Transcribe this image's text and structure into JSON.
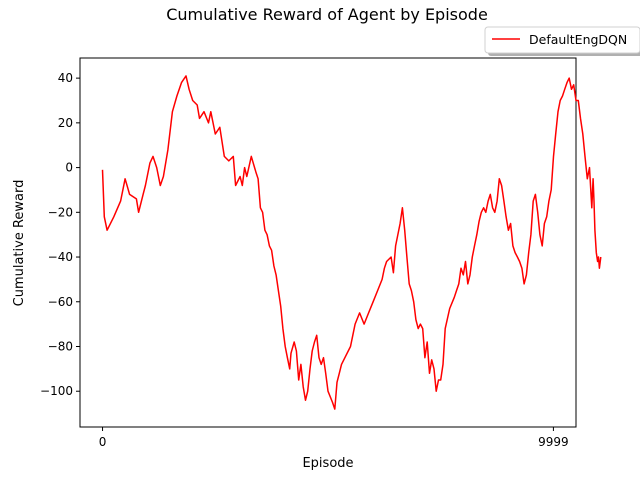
{
  "chart_data": {
    "type": "line",
    "title": "Cumulative Reward of Agent by Episode",
    "xlabel": "Episode",
    "ylabel": "Cumulative Reward",
    "x_ticks": [
      "0",
      "9999"
    ],
    "y_ticks": [
      "40",
      "20",
      "0",
      "−20",
      "−40",
      "−60",
      "−80",
      "−100"
    ],
    "xlim": [
      -500,
      10500
    ],
    "ylim": [
      -116,
      49
    ],
    "grid": false,
    "legend_position": "top-right",
    "series": [
      {
        "name": "DefaultEngDQN",
        "color": "#ff0000",
        "points": [
          [
            0,
            -1
          ],
          [
            40,
            -22
          ],
          [
            100,
            -28
          ],
          [
            250,
            -22
          ],
          [
            400,
            -15
          ],
          [
            500,
            -5
          ],
          [
            600,
            -12
          ],
          [
            750,
            -14
          ],
          [
            800,
            -20
          ],
          [
            900,
            -12
          ],
          [
            950,
            -8
          ],
          [
            1050,
            2
          ],
          [
            1120,
            5
          ],
          [
            1200,
            0
          ],
          [
            1280,
            -8
          ],
          [
            1350,
            -4
          ],
          [
            1450,
            8
          ],
          [
            1550,
            25
          ],
          [
            1650,
            32
          ],
          [
            1750,
            38
          ],
          [
            1850,
            41
          ],
          [
            1920,
            35
          ],
          [
            2000,
            30
          ],
          [
            2100,
            28
          ],
          [
            2150,
            22
          ],
          [
            2250,
            25
          ],
          [
            2350,
            20
          ],
          [
            2400,
            25
          ],
          [
            2500,
            15
          ],
          [
            2600,
            18
          ],
          [
            2700,
            5
          ],
          [
            2800,
            3
          ],
          [
            2900,
            5
          ],
          [
            2950,
            -8
          ],
          [
            3050,
            -4
          ],
          [
            3100,
            -8
          ],
          [
            3150,
            0
          ],
          [
            3200,
            -4
          ],
          [
            3300,
            5
          ],
          [
            3400,
            -2
          ],
          [
            3450,
            -5
          ],
          [
            3500,
            -18
          ],
          [
            3550,
            -20
          ],
          [
            3600,
            -28
          ],
          [
            3650,
            -30
          ],
          [
            3700,
            -35
          ],
          [
            3750,
            -37
          ],
          [
            3800,
            -44
          ],
          [
            3850,
            -48
          ],
          [
            3900,
            -55
          ],
          [
            3950,
            -62
          ],
          [
            4000,
            -72
          ],
          [
            4050,
            -80
          ],
          [
            4100,
            -85
          ],
          [
            4150,
            -90
          ],
          [
            4180,
            -83
          ],
          [
            4250,
            -78
          ],
          [
            4300,
            -82
          ],
          [
            4350,
            -95
          ],
          [
            4400,
            -88
          ],
          [
            4450,
            -98
          ],
          [
            4500,
            -104
          ],
          [
            4550,
            -100
          ],
          [
            4600,
            -90
          ],
          [
            4650,
            -82
          ],
          [
            4700,
            -78
          ],
          [
            4750,
            -75
          ],
          [
            4800,
            -85
          ],
          [
            4850,
            -88
          ],
          [
            4900,
            -85
          ],
          [
            4950,
            -92
          ],
          [
            5000,
            -100
          ],
          [
            5100,
            -105
          ],
          [
            5150,
            -108
          ],
          [
            5200,
            -96
          ],
          [
            5250,
            -92
          ],
          [
            5300,
            -88
          ],
          [
            5400,
            -84
          ],
          [
            5500,
            -80
          ],
          [
            5550,
            -75
          ],
          [
            5600,
            -70
          ],
          [
            5700,
            -65
          ],
          [
            5800,
            -70
          ],
          [
            5900,
            -65
          ],
          [
            6000,
            -60
          ],
          [
            6100,
            -55
          ],
          [
            6200,
            -50
          ],
          [
            6250,
            -45
          ],
          [
            6300,
            -42
          ],
          [
            6400,
            -40
          ],
          [
            6450,
            -47
          ],
          [
            6500,
            -35
          ],
          [
            6600,
            -25
          ],
          [
            6650,
            -18
          ],
          [
            6700,
            -28
          ],
          [
            6750,
            -40
          ],
          [
            6800,
            -52
          ],
          [
            6850,
            -55
          ],
          [
            6900,
            -60
          ],
          [
            6950,
            -68
          ],
          [
            7000,
            -72
          ],
          [
            7050,
            -70
          ],
          [
            7100,
            -72
          ],
          [
            7150,
            -85
          ],
          [
            7200,
            -78
          ],
          [
            7250,
            -92
          ],
          [
            7300,
            -86
          ],
          [
            7350,
            -90
          ],
          [
            7400,
            -100
          ],
          [
            7450,
            -95
          ],
          [
            7500,
            -95
          ],
          [
            7550,
            -88
          ],
          [
            7600,
            -72
          ],
          [
            7700,
            -63
          ],
          [
            7800,
            -58
          ],
          [
            7850,
            -55
          ],
          [
            7900,
            -52
          ],
          [
            7950,
            -45
          ],
          [
            8000,
            -48
          ],
          [
            8050,
            -42
          ],
          [
            8100,
            -52
          ],
          [
            8150,
            -48
          ],
          [
            8200,
            -40
          ],
          [
            8250,
            -35
          ],
          [
            8300,
            -30
          ],
          [
            8350,
            -24
          ],
          [
            8400,
            -20
          ],
          [
            8450,
            -18
          ],
          [
            8500,
            -20
          ],
          [
            8550,
            -15
          ],
          [
            8600,
            -12
          ],
          [
            8650,
            -18
          ],
          [
            8700,
            -20
          ],
          [
            8750,
            -15
          ],
          [
            8800,
            -5
          ],
          [
            8850,
            -8
          ],
          [
            8900,
            -15
          ],
          [
            8950,
            -22
          ],
          [
            9000,
            -28
          ],
          [
            9050,
            -25
          ],
          [
            9100,
            -35
          ],
          [
            9150,
            -38
          ],
          [
            9200,
            -40
          ],
          [
            9250,
            -42
          ],
          [
            9300,
            -45
          ],
          [
            9350,
            -52
          ],
          [
            9400,
            -48
          ],
          [
            9450,
            -38
          ],
          [
            9500,
            -30
          ],
          [
            9550,
            -15
          ],
          [
            9600,
            -12
          ],
          [
            9650,
            -20
          ],
          [
            9700,
            -30
          ],
          [
            9750,
            -35
          ],
          [
            9800,
            -25
          ],
          [
            9850,
            -22
          ],
          [
            9900,
            -15
          ],
          [
            9950,
            -10
          ],
          [
            10000,
            5
          ],
          [
            10050,
            15
          ],
          [
            10100,
            25
          ],
          [
            10150,
            30
          ],
          [
            10200,
            32
          ],
          [
            10250,
            35
          ],
          [
            10300,
            38
          ],
          [
            10350,
            40
          ],
          [
            10400,
            35
          ],
          [
            10450,
            37
          ],
          [
            10500,
            30
          ],
          [
            10550,
            30
          ],
          [
            10600,
            22
          ],
          [
            10650,
            15
          ],
          [
            10700,
            5
          ],
          [
            10750,
            -5
          ],
          [
            10800,
            0
          ],
          [
            10850,
            -18
          ],
          [
            10880,
            -5
          ],
          [
            10900,
            -15
          ],
          [
            10920,
            -28
          ],
          [
            10950,
            -38
          ],
          [
            10980,
            -42
          ],
          [
            11000,
            -40
          ],
          [
            11020,
            -45
          ],
          [
            11050,
            -40
          ]
        ]
      }
    ]
  }
}
